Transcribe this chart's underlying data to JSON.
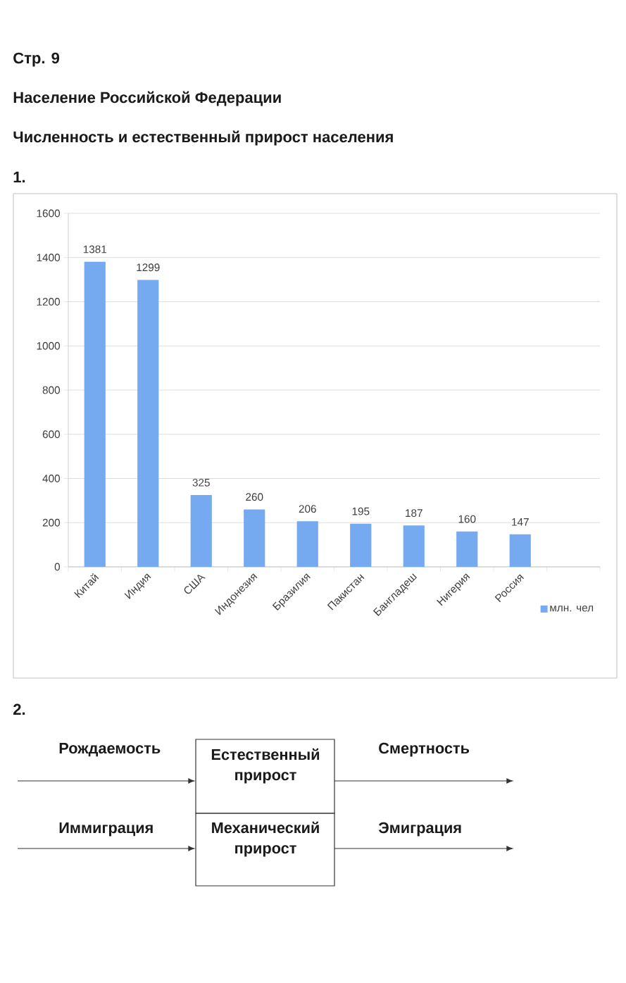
{
  "chart_data": [
    {
      "type": "bar",
      "title": "Население Российской Федерации",
      "subtitle": "Численность и естественный прирост населения",
      "annotations": [
        "Стр. 9",
        "1."
      ],
      "categories": [
        "Китай",
        "Индия",
        "США",
        "Индонезия",
        "Бразилия",
        "Пакистан",
        "Бангладеш",
        "Нигерия",
        "Россия",
        null
      ],
      "series": [
        {
          "name": "млн. чел",
          "color": "#75aaf0",
          "values": [
            1381,
            1299,
            325,
            260,
            206,
            195,
            187,
            160,
            147,
            null
          ]
        }
      ],
      "ylim": [
        0,
        1600
      ],
      "yticks": [
        0,
        200,
        400,
        600,
        800,
        1000,
        1200,
        1400,
        1600
      ],
      "grid": "y",
      "legend": "bottom right",
      "data_labels": true
    },
    {
      "type": "other",
      "annotations": [
        "2.",
        "Рождаемость",
        "Естественный прирост",
        "Смертность",
        "Иммиграция",
        "Механический прирост",
        "Эмиграция"
      ]
    }
  ]
}
